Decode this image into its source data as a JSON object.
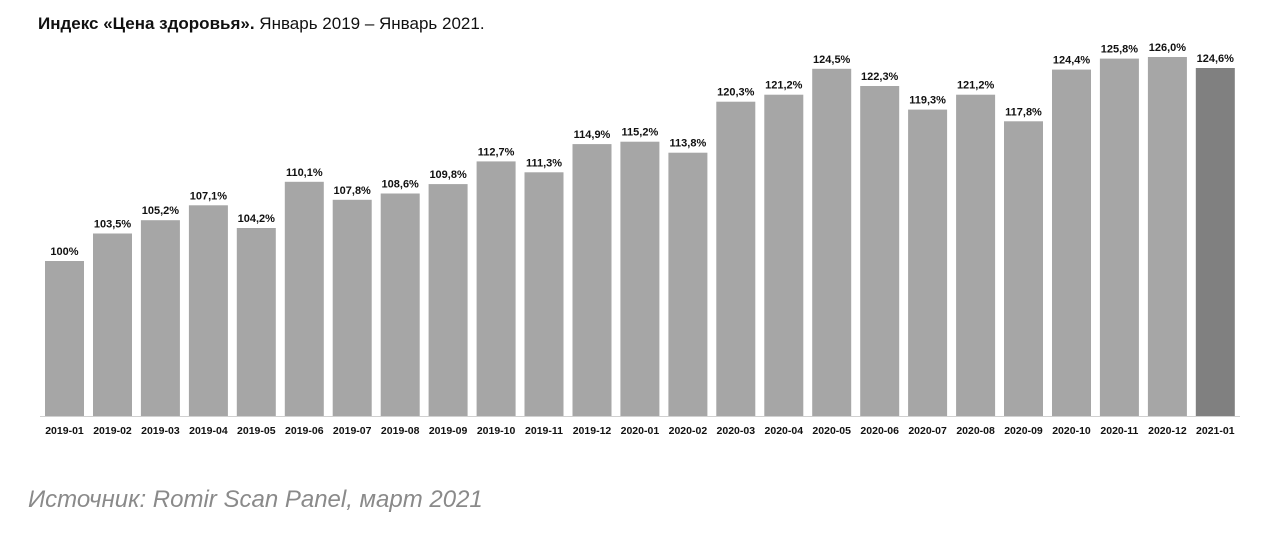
{
  "title": {
    "bold": "Индекс «Цена здоровья».",
    "rest": " Январь 2019 – Январь 2021."
  },
  "source": "Источник: Romir Scan Panel, март 2021",
  "chart_data": {
    "type": "bar",
    "title": "Индекс «Цена здоровья». Январь 2019 – Январь 2021.",
    "xlabel": "",
    "ylabel": "",
    "ylim": [
      0,
      128
    ],
    "grid": false,
    "categories": [
      "2019-01",
      "2019-02",
      "2019-03",
      "2019-04",
      "2019-05",
      "2019-06",
      "2019-07",
      "2019-08",
      "2019-09",
      "2019-10",
      "2019-11",
      "2019-12",
      "2020-01",
      "2020-02",
      "2020-03",
      "2020-04",
      "2020-05",
      "2020-06",
      "2020-07",
      "2020-08",
      "2020-09",
      "2020-10",
      "2020-11",
      "2020-12",
      "2021-01"
    ],
    "values": [
      100,
      103.5,
      105.2,
      107.1,
      104.2,
      110.1,
      107.8,
      108.6,
      109.8,
      112.7,
      111.3,
      114.9,
      115.2,
      113.8,
      120.3,
      121.2,
      124.5,
      122.3,
      119.3,
      121.2,
      117.8,
      124.4,
      125.8,
      126.0,
      124.6
    ],
    "value_labels": [
      "100%",
      "103,5%",
      "105,2%",
      "107,1%",
      "104,2%",
      "110,1%",
      "107,8%",
      "108,6%",
      "109,8%",
      "112,7%",
      "111,3%",
      "114,9%",
      "115,2%",
      "113,8%",
      "120,3%",
      "121,2%",
      "124,5%",
      "122,3%",
      "119,3%",
      "121,2%",
      "117,8%",
      "124,4%",
      "125,8%",
      "126,0%",
      "124,6%"
    ],
    "colors": {
      "bar": "#a6a6a6",
      "highlight_bar": "#808080",
      "axis": "#d0d0d0"
    },
    "highlight_index": 24
  }
}
